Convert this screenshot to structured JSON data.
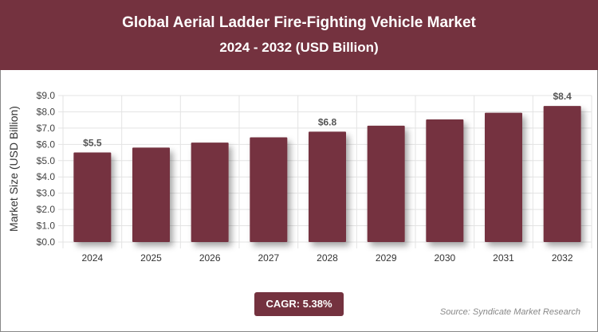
{
  "header": {
    "title": "Global Aerial Ladder Fire-Fighting Vehicle Market",
    "subtitle": "2024 - 2032 (USD Billion)"
  },
  "chart_data": {
    "type": "bar",
    "title": "Global Aerial Ladder Fire-Fighting Vehicle Market",
    "subtitle": "2024 - 2032 (USD Billion)",
    "ylabel": "Market Size (USD Billion)",
    "xlabel": "",
    "categories": [
      "2024",
      "2025",
      "2026",
      "2027",
      "2028",
      "2029",
      "2030",
      "2031",
      "2032"
    ],
    "values": [
      5.5,
      5.8,
      6.11,
      6.43,
      6.78,
      7.15,
      7.53,
      7.94,
      8.36
    ],
    "data_labels": {
      "0": "$5.5",
      "4": "$6.8",
      "8": "$8.4"
    },
    "yticks": [
      "$0.0",
      "$1.0",
      "$2.0",
      "$3.0",
      "$4.0",
      "$5.0",
      "$6.0",
      "$7.0",
      "$8.0",
      "$9.0"
    ],
    "ylim": [
      0,
      9
    ],
    "grid": true,
    "bar_color": "#74323f"
  },
  "footer": {
    "cagr": "CAGR: 5.38%",
    "source": "Source: Syndicate Market Research"
  }
}
